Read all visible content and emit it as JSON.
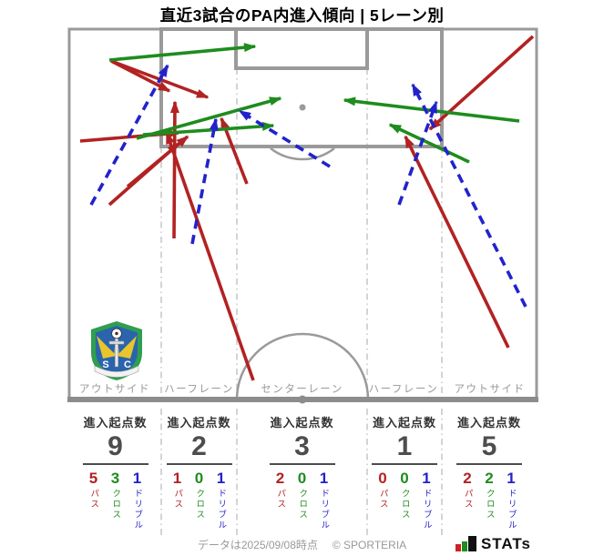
{
  "title": "直近3試合のPA内進入傾向 | 5レーン別",
  "colors": {
    "pass": "#b22222",
    "cross": "#1e8c1e",
    "dribble": "#2222cc",
    "pitch_line": "#9a9a9a",
    "lane_divider": "#c2c2c2",
    "label_gray": "#999999",
    "stat_header": "#333333",
    "stat_number": "#4d4d4d",
    "logo_bar_red": "#cc2222",
    "logo_bar_green": "#1e8c1e",
    "logo_bar_black": "#101010"
  },
  "stat_label": "進入起点数",
  "legend": {
    "pass": "パス",
    "cross": "クロス",
    "dribble": "ドリブル"
  },
  "lanes": [
    {
      "label": "アウトサイド",
      "total": 9,
      "pass": 5,
      "cross": 3,
      "dribble": 1
    },
    {
      "label": "ハーフレーン",
      "total": 2,
      "pass": 1,
      "cross": 0,
      "dribble": 1
    },
    {
      "label": "センターレーン",
      "total": 3,
      "pass": 2,
      "cross": 0,
      "dribble": 1
    },
    {
      "label": "ハーフレーン",
      "total": 1,
      "pass": 0,
      "cross": 0,
      "dribble": 1
    },
    {
      "label": "アウトサイド",
      "total": 5,
      "pass": 2,
      "cross": 2,
      "dribble": 1
    }
  ],
  "footer": {
    "note": "データは2025/09/08時点",
    "copyright": "© SPORTERIA",
    "stats_logo": "STATs"
  },
  "chart_data": {
    "type": "pitch-arrows",
    "title": "直近3試合のPA内進入傾向 | 5レーン別",
    "categories": [
      "アウトサイド",
      "ハーフレーン",
      "センターレーン",
      "ハーフレーン",
      "アウトサイド"
    ],
    "series": [
      {
        "name": "進入起点数",
        "values": [
          9,
          2,
          3,
          1,
          5
        ]
      },
      {
        "name": "パス",
        "values": [
          5,
          1,
          2,
          0,
          2
        ]
      },
      {
        "name": "クロス",
        "values": [
          3,
          0,
          0,
          0,
          2
        ]
      },
      {
        "name": "ドリブル",
        "values": [
          1,
          1,
          1,
          1,
          1
        ]
      }
    ],
    "arrow_styles": {
      "pass": "solid red",
      "cross": "solid green",
      "dribble": "dashed blue"
    },
    "arrows": [
      {
        "type": "pass",
        "from": [
          122,
          67
        ],
        "to": [
          186,
          100
        ]
      },
      {
        "type": "pass",
        "from": [
          122,
          67
        ],
        "to": [
          228,
          107
        ]
      },
      {
        "type": "pass",
        "from": [
          88,
          155
        ],
        "to": [
          196,
          146
        ]
      },
      {
        "type": "pass",
        "from": [
          120,
          225
        ],
        "to": [
          196,
          158
        ]
      },
      {
        "type": "pass",
        "from": [
          140,
          205
        ],
        "to": [
          206,
          150
        ]
      },
      {
        "type": "pass",
        "from": [
          191,
          262
        ],
        "to": [
          192,
          112
        ]
      },
      {
        "type": "pass",
        "from": [
          278,
          418
        ],
        "to": [
          183,
          146
        ]
      },
      {
        "type": "pass",
        "from": [
          271,
          202
        ],
        "to": [
          243,
          130
        ]
      },
      {
        "type": "pass",
        "from": [
          585,
          40
        ],
        "to": [
          472,
          142
        ]
      },
      {
        "type": "pass",
        "from": [
          558,
          382
        ],
        "to": [
          445,
          150
        ]
      },
      {
        "type": "cross",
        "from": [
          120,
          66
        ],
        "to": [
          280,
          51
        ]
      },
      {
        "type": "cross",
        "from": [
          150,
          152
        ],
        "to": [
          308,
          108
        ]
      },
      {
        "type": "cross",
        "from": [
          157,
          148
        ],
        "to": [
          300,
          138
        ]
      },
      {
        "type": "cross",
        "from": [
          570,
          133
        ],
        "to": [
          378,
          110
        ]
      },
      {
        "type": "cross",
        "from": [
          515,
          178
        ],
        "to": [
          428,
          137
        ]
      },
      {
        "type": "dribble",
        "from": [
          100,
          225
        ],
        "to": [
          184,
          72
        ]
      },
      {
        "type": "dribble",
        "from": [
          211,
          268
        ],
        "to": [
          237,
          131
        ]
      },
      {
        "type": "dribble",
        "from": [
          362,
          183
        ],
        "to": [
          263,
          122
        ]
      },
      {
        "type": "dribble",
        "from": [
          438,
          225
        ],
        "to": [
          479,
          112
        ]
      },
      {
        "type": "dribble",
        "from": [
          577,
          337
        ],
        "to": [
          453,
          93
        ]
      }
    ]
  }
}
